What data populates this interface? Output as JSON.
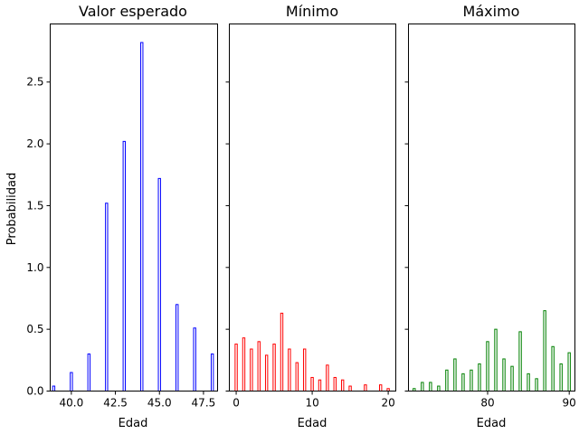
{
  "chart_data": [
    {
      "type": "bar",
      "title": "Valor esperado",
      "xlabel": "Edad",
      "ylabel": "Probabilidad",
      "color": "#0000ff",
      "x": [
        39,
        40,
        41,
        42,
        43,
        44,
        45,
        46,
        47,
        48
      ],
      "values": [
        0.04,
        0.15,
        0.3,
        1.52,
        2.02,
        2.82,
        1.72,
        0.7,
        0.51,
        0.3
      ],
      "xlim": [
        38.8,
        48.3
      ],
      "ylim": [
        0,
        2.97
      ],
      "xticks": [
        40.0,
        42.5,
        45.0,
        47.5
      ],
      "xticklabels": [
        "40.0",
        "42.5",
        "45.0",
        "47.5"
      ],
      "yticks": [
        0.0,
        0.5,
        1.0,
        1.5,
        2.0,
        2.5
      ],
      "yticklabels": [
        "0.0",
        "0.5",
        "1.0",
        "1.5",
        "2.0",
        "2.5"
      ],
      "grid": false
    },
    {
      "type": "bar",
      "title": "Mínimo",
      "xlabel": "Edad",
      "ylabel": "",
      "color": "#ff0000",
      "x": [
        0,
        1,
        2,
        3,
        4,
        5,
        6,
        7,
        8,
        9,
        10,
        11,
        12,
        13,
        14,
        15,
        17,
        19,
        20
      ],
      "values": [
        0.38,
        0.43,
        0.34,
        0.4,
        0.29,
        0.38,
        0.63,
        0.34,
        0.23,
        0.34,
        0.11,
        0.09,
        0.21,
        0.11,
        0.09,
        0.04,
        0.05,
        0.05,
        0.02
      ],
      "xlim": [
        -0.9,
        21.0
      ],
      "ylim": [
        0,
        2.97
      ],
      "xticks": [
        0,
        10,
        20
      ],
      "xticklabels": [
        "0",
        "10",
        "20"
      ],
      "grid": false
    },
    {
      "type": "bar",
      "title": "Máximo",
      "xlabel": "Edad",
      "ylabel": "",
      "color": "#008000",
      "x": [
        71,
        72,
        73,
        74,
        75,
        76,
        77,
        78,
        79,
        80,
        81,
        82,
        83,
        84,
        85,
        86,
        87,
        88,
        89,
        90
      ],
      "values": [
        0.02,
        0.07,
        0.07,
        0.04,
        0.17,
        0.26,
        0.14,
        0.17,
        0.22,
        0.4,
        0.5,
        0.26,
        0.2,
        0.48,
        0.14,
        0.1,
        0.65,
        0.36,
        0.22,
        0.31
      ],
      "xlim": [
        70.3,
        90.7
      ],
      "ylim": [
        0,
        2.97
      ],
      "xticks": [
        80,
        90
      ],
      "xticklabels": [
        "80",
        "90"
      ],
      "grid": false
    }
  ]
}
